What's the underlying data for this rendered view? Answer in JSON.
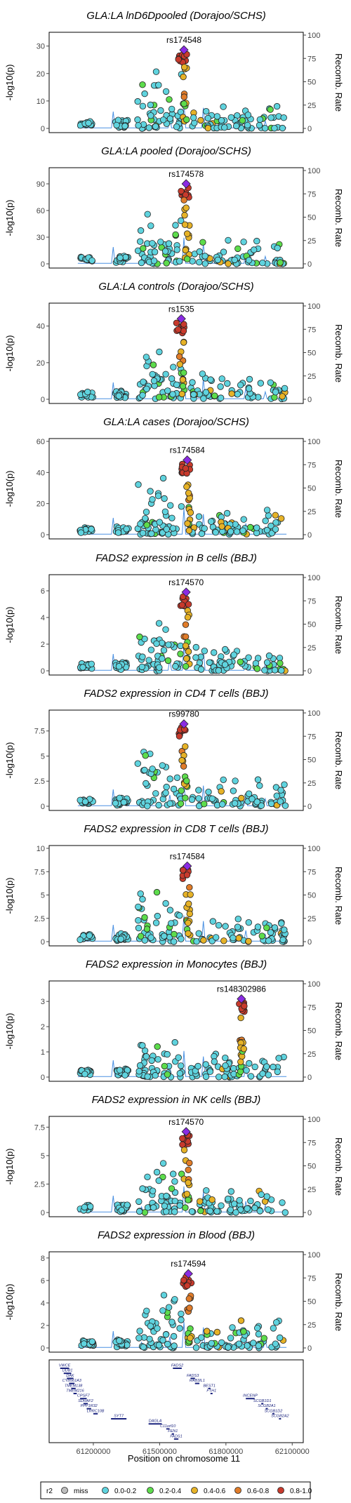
{
  "chart_data": {
    "type": "scatter",
    "figure": "regional association plots (LocusZoom style)",
    "x_axis": {
      "label": "Position on chromosome 11",
      "range": [
        61000000,
        62150000
      ],
      "ticks": [
        61200000,
        61500000,
        61800000,
        62100000
      ],
      "tick_labels": [
        "61200000",
        "61500000",
        "61800000",
        "62100000"
      ]
    },
    "recomb_axis": {
      "label": "Recomb. Rate",
      "ticks": [
        0,
        25,
        50,
        75,
        100
      ],
      "range": [
        0,
        100
      ]
    },
    "y_label": "-log10(p)",
    "panels": [
      {
        "title": "GLA:LA lnD6Dpooled (Dorajoo/SCHS)",
        "lead_snp": "rs174548",
        "lead_pos": 61610000,
        "lead_p": 28.6,
        "ymax": 34,
        "yticks": [
          0,
          10,
          20,
          30
        ]
      },
      {
        "title": "GLA:LA pooled (Dorajoo/SCHS)",
        "lead_snp": "rs174578",
        "lead_pos": 61620000,
        "lead_p": 90,
        "ymax": 105,
        "yticks": [
          0,
          30,
          60,
          90
        ]
      },
      {
        "title": "GLA:LA controls (Dorajoo/SCHS)",
        "lead_snp": "rs1535",
        "lead_pos": 61598000,
        "lead_p": 44,
        "ymax": 51,
        "yticks": [
          0,
          20,
          40
        ]
      },
      {
        "title": "GLA:LA cases (Dorajoo/SCHS)",
        "lead_snp": "rs174584",
        "lead_pos": 61625000,
        "lead_p": 48,
        "ymax": 60,
        "yticks": [
          0,
          20,
          40,
          60
        ]
      },
      {
        "title": "FADS2 expression in B cells (BBJ)",
        "lead_snp": "rs174570",
        "lead_pos": 61620000,
        "lead_p": 5.9,
        "ymax": 7.0,
        "yticks": [
          0,
          2,
          4,
          6
        ]
      },
      {
        "title": "FADS2 expression in CD4 T cells (BBJ)",
        "lead_snp": "rs99780",
        "lead_pos": 61610000,
        "lead_p": 8.2,
        "ymax": 9.3,
        "yticks": [
          0,
          2.5,
          5.0,
          7.5
        ]
      },
      {
        "title": "FADS2 expression in CD8 T cells (BBJ)",
        "lead_snp": "rs174584",
        "lead_pos": 61625000,
        "lead_p": 8.1,
        "ymax": 10.0,
        "yticks": [
          0,
          2.5,
          5.0,
          7.5,
          10.0
        ]
      },
      {
        "title": "FADS2 expression in Monocytes (BBJ)",
        "lead_snp": "rs148302986",
        "lead_pos": 61870000,
        "lead_p": 3.1,
        "ymax": 3.7,
        "yticks": [
          0,
          1,
          2,
          3
        ]
      },
      {
        "title": "FADS2 expression in NK cells (BBJ)",
        "lead_snp": "rs174570",
        "lead_pos": 61620000,
        "lead_p": 7.1,
        "ymax": 8.2,
        "yticks": [
          0,
          2.5,
          5.0,
          7.5
        ]
      },
      {
        "title": "FADS2 expression in Blood (BBJ)",
        "lead_snp": "rs174594",
        "lead_pos": 61630000,
        "lead_p": 6.6,
        "ymax": 8.3,
        "yticks": [
          0,
          2,
          4,
          6,
          8
        ]
      }
    ],
    "genes": [
      {
        "name": "VWCE",
        "start": 61050000,
        "end": 61090000,
        "row": 0
      },
      {
        "name": "DDB1",
        "start": 61066000,
        "end": 61100000,
        "row": 1
      },
      {
        "name": "DAK",
        "start": 61080000,
        "end": 61110000,
        "row": 2
      },
      {
        "name": "CYB561A3",
        "start": 61090000,
        "end": 61115000,
        "row": 3
      },
      {
        "name": "TMEM138",
        "start": 61100000,
        "end": 61120000,
        "row": 4
      },
      {
        "name": "TMEM216",
        "start": 61110000,
        "end": 61125000,
        "row": 5
      },
      {
        "name": "CPSF7",
        "start": 61140000,
        "end": 61170000,
        "row": 6
      },
      {
        "name": "SDHAF2",
        "start": 61155000,
        "end": 61175000,
        "row": 7
      },
      {
        "name": "PPP1R32",
        "start": 61170000,
        "end": 61190000,
        "row": 8
      },
      {
        "name": "LRRC10B",
        "start": 61200000,
        "end": 61220000,
        "row": 9
      },
      {
        "name": "SYT7",
        "start": 61280000,
        "end": 61350000,
        "row": 10
      },
      {
        "name": "DAGLA",
        "start": 61450000,
        "end": 61510000,
        "row": 11
      },
      {
        "name": "C11orf10",
        "start": 61530000,
        "end": 61545000,
        "row": 12
      },
      {
        "name": "FEN1",
        "start": 61555000,
        "end": 61565000,
        "row": 13
      },
      {
        "name": "FADS1",
        "start": 61565000,
        "end": 61585000,
        "row": 14
      },
      {
        "name": "FADS2",
        "start": 61560000,
        "end": 61600000,
        "row": 0
      },
      {
        "name": "FADS3",
        "start": 61640000,
        "end": 61660000,
        "row": 2
      },
      {
        "name": "RAB3IL1",
        "start": 61660000,
        "end": 61680000,
        "row": 3
      },
      {
        "name": "BEST1",
        "start": 61720000,
        "end": 61730000,
        "row": 4
      },
      {
        "name": "FTH1",
        "start": 61730000,
        "end": 61735000,
        "row": 5
      },
      {
        "name": "INCENP",
        "start": 61890000,
        "end": 61930000,
        "row": 6
      },
      {
        "name": "SCGB1D1",
        "start": 61960000,
        "end": 61965000,
        "row": 7
      },
      {
        "name": "SCGB2A1",
        "start": 61980000,
        "end": 61985000,
        "row": 8
      },
      {
        "name": "SCGB1D2",
        "start": 62010000,
        "end": 62015000,
        "row": 9
      },
      {
        "name": "SCGB2A2",
        "start": 62040000,
        "end": 62045000,
        "row": 10
      }
    ],
    "legend": {
      "title": "r2",
      "items": [
        {
          "label": "miss",
          "color": "#bdbdbd"
        },
        {
          "label": "0.0-0.2",
          "color": "#5fd3de"
        },
        {
          "label": "0.2-0.4",
          "color": "#5ddc4c"
        },
        {
          "label": "0.4-0.6",
          "color": "#e6b227"
        },
        {
          "label": "0.6-0.8",
          "color": "#e07c2a"
        },
        {
          "label": "0.8-1.0",
          "color": "#c83a2c"
        }
      ]
    },
    "colors": {
      "lead": "#8a2be2",
      "recomb_line": "#4a90e2"
    }
  }
}
